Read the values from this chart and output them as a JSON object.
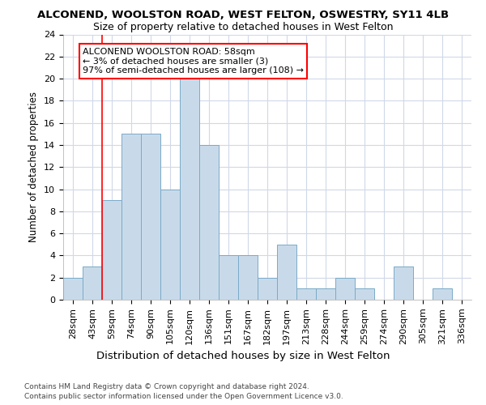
{
  "title": "ALCONEND, WOOLSTON ROAD, WEST FELTON, OSWESTRY, SY11 4LB",
  "subtitle": "Size of property relative to detached houses in West Felton",
  "xlabel_bottom": "Distribution of detached houses by size in West Felton",
  "ylabel": "Number of detached properties",
  "categories": [
    "28sqm",
    "43sqm",
    "59sqm",
    "74sqm",
    "90sqm",
    "105sqm",
    "120sqm",
    "136sqm",
    "151sqm",
    "167sqm",
    "182sqm",
    "197sqm",
    "213sqm",
    "228sqm",
    "244sqm",
    "259sqm",
    "274sqm",
    "290sqm",
    "305sqm",
    "321sqm",
    "336sqm"
  ],
  "values": [
    2,
    3,
    9,
    15,
    15,
    10,
    20,
    14,
    4,
    4,
    2,
    5,
    1,
    1,
    2,
    1,
    0,
    3,
    0,
    1,
    0
  ],
  "bar_color": "#c8daea",
  "bar_edge_color": "#7aaac8",
  "property_line_x": 1.5,
  "annotation_text_lines": [
    "ALCONEND WOOLSTON ROAD: 58sqm",
    "← 3% of detached houses are smaller (3)",
    "97% of semi-detached houses are larger (108) →"
  ],
  "ylim": [
    0,
    24
  ],
  "yticks": [
    0,
    2,
    4,
    6,
    8,
    10,
    12,
    14,
    16,
    18,
    20,
    22,
    24
  ],
  "footer_line1": "Contains HM Land Registry data © Crown copyright and database right 2024.",
  "footer_line2": "Contains public sector information licensed under the Open Government Licence v3.0.",
  "background_color": "#ffffff",
  "plot_bg_color": "#ffffff",
  "grid_color": "#d0d8e8",
  "title_fontsize": 9.5,
  "subtitle_fontsize": 9.0,
  "annotation_fontsize": 8.0,
  "ylabel_fontsize": 8.5,
  "xlabel_fontsize": 9.5,
  "tick_fontsize": 8.0,
  "footer_fontsize": 6.5
}
